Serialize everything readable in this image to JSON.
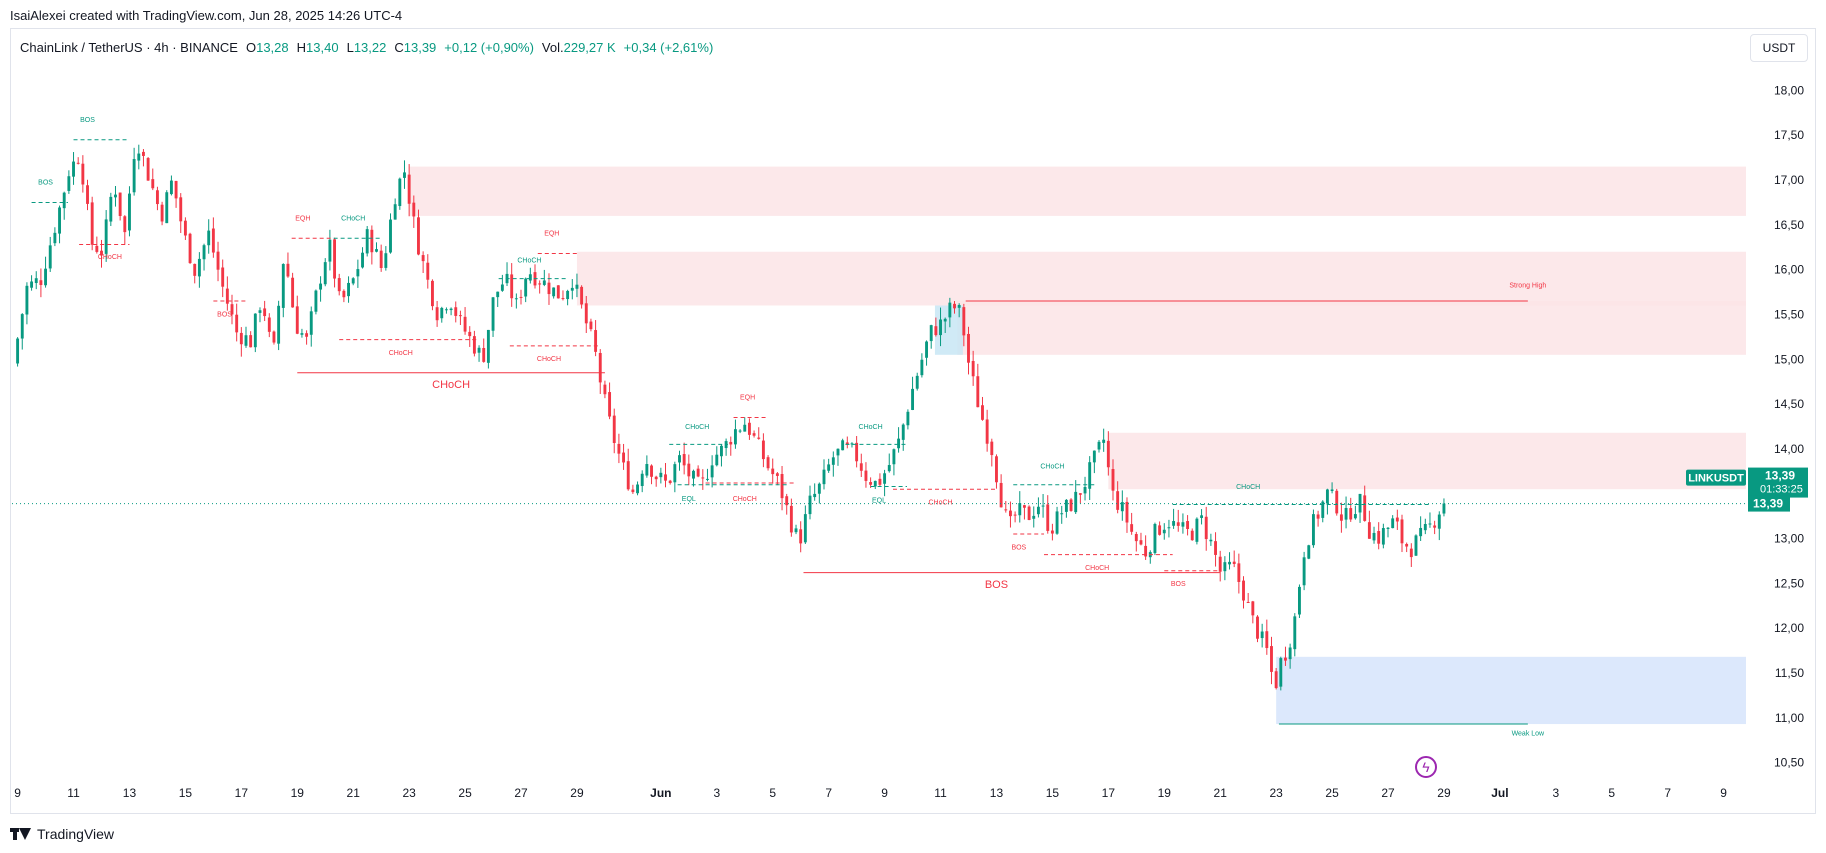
{
  "credit": "IsaiAlexei created with TradingView.com, Jun 28, 2025 14:26 UTC-4",
  "legend": {
    "symbol": "ChainLink / TetherUS · 4h · BINANCE",
    "open_label": "O",
    "open": "13,28",
    "high_label": "H",
    "high": "13,40",
    "low_label": "L",
    "low": "13,22",
    "close_label": "C",
    "close": "13,39",
    "change": "+0,12 (+0,90%)",
    "vol_label": "Vol.",
    "vol": "229,27 K",
    "vol_change": "+0,34 (+2,61%)"
  },
  "currency": "USDT",
  "footer": "TradingView",
  "flash_icon": "lightning-icon",
  "colors": {
    "up": "#089981",
    "down": "#f23645",
    "supply_zone": "#fce4e6",
    "demand_zone": "#d6e4fc",
    "ob_blue": "#c8e6f5"
  },
  "chart_data": {
    "type": "candlestick",
    "symbol": "LINKUSDT",
    "timeframe": "4h",
    "ylim": [
      10.25,
      18.25
    ],
    "y_ticks": [
      {
        "v": 18.0,
        "label": "18,00"
      },
      {
        "v": 17.5,
        "label": "17,50"
      },
      {
        "v": 17.0,
        "label": "17,00"
      },
      {
        "v": 16.5,
        "label": "16,50"
      },
      {
        "v": 16.0,
        "label": "16,00"
      },
      {
        "v": 15.5,
        "label": "15,50"
      },
      {
        "v": 15.0,
        "label": "15,00"
      },
      {
        "v": 14.5,
        "label": "14,50"
      },
      {
        "v": 14.0,
        "label": "14,00"
      },
      {
        "v": 13.0,
        "label": "13,00"
      },
      {
        "v": 12.5,
        "label": "12,50"
      },
      {
        "v": 12.0,
        "label": "12,00"
      },
      {
        "v": 11.5,
        "label": "11,50"
      },
      {
        "v": 11.0,
        "label": "11,00"
      },
      {
        "v": 10.5,
        "label": "10,50"
      }
    ],
    "x_ticks": [
      {
        "d": 0,
        "label": "9"
      },
      {
        "d": 2,
        "label": "11"
      },
      {
        "d": 4,
        "label": "13"
      },
      {
        "d": 6,
        "label": "15"
      },
      {
        "d": 8,
        "label": "17"
      },
      {
        "d": 10,
        "label": "19"
      },
      {
        "d": 12,
        "label": "21"
      },
      {
        "d": 14,
        "label": "23"
      },
      {
        "d": 16,
        "label": "25"
      },
      {
        "d": 18,
        "label": "27"
      },
      {
        "d": 20,
        "label": "29"
      },
      {
        "d": 23,
        "label": "Jun",
        "bold": true
      },
      {
        "d": 25,
        "label": "3"
      },
      {
        "d": 27,
        "label": "5"
      },
      {
        "d": 29,
        "label": "7"
      },
      {
        "d": 31,
        "label": "9"
      },
      {
        "d": 33,
        "label": "11"
      },
      {
        "d": 35,
        "label": "13"
      },
      {
        "d": 37,
        "label": "15"
      },
      {
        "d": 39,
        "label": "17"
      },
      {
        "d": 41,
        "label": "19"
      },
      {
        "d": 43,
        "label": "21"
      },
      {
        "d": 45,
        "label": "23"
      },
      {
        "d": 47,
        "label": "25"
      },
      {
        "d": 49,
        "label": "27"
      },
      {
        "d": 51,
        "label": "29"
      },
      {
        "d": 53,
        "label": "Jul",
        "bold": true
      },
      {
        "d": 55,
        "label": "3"
      },
      {
        "d": 57,
        "label": "5"
      },
      {
        "d": 59,
        "label": "7"
      },
      {
        "d": 61,
        "label": "9"
      }
    ],
    "x_range_days": [
      -0.2,
      61.8
    ],
    "waypoints": [
      [
        0.0,
        14.95
      ],
      [
        0.5,
        15.8
      ],
      [
        1.0,
        15.9
      ],
      [
        1.6,
        16.6
      ],
      [
        2.0,
        17.1
      ],
      [
        2.4,
        17.3
      ],
      [
        2.8,
        16.3
      ],
      [
        3.2,
        16.2
      ],
      [
        3.6,
        17.0
      ],
      [
        4.0,
        16.4
      ],
      [
        4.4,
        17.5
      ],
      [
        4.9,
        17.0
      ],
      [
        5.3,
        16.6
      ],
      [
        5.7,
        17.0
      ],
      [
        6.1,
        16.4
      ],
      [
        6.5,
        16.0
      ],
      [
        7.0,
        16.4
      ],
      [
        7.5,
        15.8
      ],
      [
        8.0,
        15.3
      ],
      [
        8.5,
        15.2
      ],
      [
        8.9,
        15.7
      ],
      [
        9.3,
        15.0
      ],
      [
        9.7,
        16.2
      ],
      [
        10.1,
        15.4
      ],
      [
        10.5,
        15.2
      ],
      [
        10.9,
        15.8
      ],
      [
        11.3,
        16.3
      ],
      [
        11.7,
        15.6
      ],
      [
        12.2,
        15.9
      ],
      [
        12.7,
        16.4
      ],
      [
        13.2,
        16.0
      ],
      [
        13.7,
        16.9
      ],
      [
        14.0,
        17.1
      ],
      [
        14.4,
        16.4
      ],
      [
        14.8,
        15.9
      ],
      [
        15.2,
        15.5
      ],
      [
        15.6,
        15.7
      ],
      [
        16.0,
        15.4
      ],
      [
        16.4,
        15.2
      ],
      [
        16.8,
        15.0
      ],
      [
        17.2,
        15.7
      ],
      [
        17.6,
        15.9
      ],
      [
        18.0,
        15.6
      ],
      [
        18.4,
        16.0
      ],
      [
        18.8,
        15.9
      ],
      [
        19.2,
        15.8
      ],
      [
        19.6,
        15.7
      ],
      [
        20.0,
        15.9
      ],
      [
        20.4,
        15.5
      ],
      [
        20.8,
        15.1
      ],
      [
        21.1,
        14.6
      ],
      [
        21.4,
        14.2
      ],
      [
        21.8,
        13.8
      ],
      [
        22.2,
        13.5
      ],
      [
        22.6,
        13.9
      ],
      [
        23.0,
        13.7
      ],
      [
        23.4,
        13.6
      ],
      [
        23.8,
        13.9
      ],
      [
        24.2,
        13.7
      ],
      [
        24.6,
        13.55
      ],
      [
        25.0,
        13.9
      ],
      [
        25.4,
        14.0
      ],
      [
        25.8,
        14.2
      ],
      [
        26.2,
        14.3
      ],
      [
        26.6,
        14.05
      ],
      [
        27.0,
        13.8
      ],
      [
        27.4,
        13.6
      ],
      [
        27.8,
        13.2
      ],
      [
        28.1,
        12.95
      ],
      [
        28.5,
        13.4
      ],
      [
        28.9,
        13.6
      ],
      [
        29.3,
        13.9
      ],
      [
        29.7,
        14.0
      ],
      [
        30.1,
        13.95
      ],
      [
        30.5,
        13.7
      ],
      [
        30.9,
        13.6
      ],
      [
        31.3,
        13.8
      ],
      [
        31.7,
        14.1
      ],
      [
        32.1,
        14.6
      ],
      [
        32.5,
        15.0
      ],
      [
        32.8,
        15.3
      ],
      [
        33.2,
        15.4
      ],
      [
        33.6,
        15.6
      ],
      [
        33.9,
        15.5
      ],
      [
        34.2,
        14.9
      ],
      [
        34.6,
        14.4
      ],
      [
        35.0,
        14.0
      ],
      [
        35.3,
        13.5
      ],
      [
        35.6,
        13.1
      ],
      [
        35.9,
        13.3
      ],
      [
        36.3,
        13.25
      ],
      [
        36.7,
        13.4
      ],
      [
        37.1,
        13.1
      ],
      [
        37.5,
        13.3
      ],
      [
        37.9,
        13.4
      ],
      [
        38.3,
        13.6
      ],
      [
        38.7,
        13.9
      ],
      [
        39.0,
        14.1
      ],
      [
        39.3,
        13.5
      ],
      [
        39.7,
        13.3
      ],
      [
        40.1,
        13.0
      ],
      [
        40.5,
        12.85
      ],
      [
        40.9,
        13.1
      ],
      [
        41.3,
        13.2
      ],
      [
        41.7,
        13.1
      ],
      [
        42.1,
        13.05
      ],
      [
        42.5,
        13.2
      ],
      [
        42.9,
        12.9
      ],
      [
        43.2,
        12.6
      ],
      [
        43.6,
        12.7
      ],
      [
        44.0,
        12.4
      ],
      [
        44.3,
        12.1
      ],
      [
        44.6,
        11.9
      ],
      [
        44.9,
        11.7
      ],
      [
        45.1,
        11.3
      ],
      [
        45.3,
        11.6
      ],
      [
        45.6,
        11.8
      ],
      [
        45.9,
        12.2
      ],
      [
        46.1,
        12.8
      ],
      [
        46.4,
        13.1
      ],
      [
        46.7,
        13.3
      ],
      [
        47.0,
        13.5
      ],
      [
        47.3,
        13.4
      ],
      [
        47.6,
        13.2
      ],
      [
        47.9,
        13.35
      ],
      [
        48.2,
        13.4
      ],
      [
        48.5,
        13.1
      ],
      [
        48.8,
        13.0
      ],
      [
        49.1,
        13.1
      ],
      [
        49.4,
        13.2
      ],
      [
        49.7,
        12.95
      ],
      [
        50.0,
        12.9
      ],
      [
        50.3,
        13.0
      ],
      [
        50.6,
        13.1
      ],
      [
        50.9,
        13.25
      ],
      [
        51.1,
        13.39
      ]
    ],
    "current_price": 13.39,
    "price_label": "LINKUSDT",
    "price_tag": "13,39",
    "countdown": "01:33:25",
    "price_tag2": "13,39",
    "zones": [
      {
        "x1": 14.0,
        "x2": 61.8,
        "y1": 17.15,
        "y2": 16.6,
        "type": "supply"
      },
      {
        "x1": 20.0,
        "x2": 61.8,
        "y1": 16.2,
        "y2": 15.6,
        "type": "supply"
      },
      {
        "x1": 33.6,
        "x2": 61.8,
        "y1": 15.65,
        "y2": 15.05,
        "type": "supply"
      },
      {
        "x1": 39.0,
        "x2": 61.8,
        "y1": 14.18,
        "y2": 13.55,
        "type": "supply"
      },
      {
        "x1": 32.8,
        "x2": 33.8,
        "y1": 15.6,
        "y2": 15.05,
        "type": "ob_blue"
      },
      {
        "x1": 45.0,
        "x2": 61.8,
        "y1": 11.68,
        "y2": 10.93,
        "type": "demand"
      }
    ],
    "structure_lines": [
      {
        "x1": 10.0,
        "x2": 21.0,
        "y": 14.85,
        "color": "down",
        "dash": false,
        "label": "CHoCH",
        "lx": 15.5,
        "ly": 14.68,
        "size": 11
      },
      {
        "x1": 28.1,
        "x2": 43.0,
        "y": 12.62,
        "color": "down",
        "dash": false,
        "label": "BOS",
        "lx": 35.0,
        "ly": 12.45,
        "size": 11
      },
      {
        "x1": 33.9,
        "x2": 54.0,
        "y": 15.65,
        "color": "down",
        "dash": false,
        "label": "Strong High",
        "lx": 54.0,
        "ly": 15.8,
        "size": 7
      },
      {
        "x1": 45.1,
        "x2": 54.0,
        "y": 10.93,
        "color": "up",
        "dash": false,
        "label": "Weak Low",
        "lx": 54.0,
        "ly": 10.8,
        "size": 7
      },
      {
        "x1": 0.5,
        "x2": 1.8,
        "y": 16.75,
        "color": "up",
        "dash": true,
        "label": "BOS",
        "lx": 1.0,
        "ly": 16.95,
        "size": 7
      },
      {
        "x1": 2.0,
        "x2": 4.0,
        "y": 17.45,
        "color": "up",
        "dash": true,
        "label": "BOS",
        "lx": 2.5,
        "ly": 17.65,
        "size": 7
      },
      {
        "x1": 2.2,
        "x2": 4.0,
        "y": 16.28,
        "color": "down",
        "dash": true,
        "label": "CHoCH",
        "lx": 3.3,
        "ly": 16.12,
        "size": 7
      },
      {
        "x1": 7.0,
        "x2": 8.2,
        "y": 15.65,
        "color": "down",
        "dash": true,
        "label": "BOS",
        "lx": 7.4,
        "ly": 15.48,
        "size": 7
      },
      {
        "x1": 9.8,
        "x2": 11.3,
        "y": 16.35,
        "color": "down",
        "dash": true,
        "label": "EQH",
        "lx": 10.2,
        "ly": 16.55,
        "size": 7
      },
      {
        "x1": 11.3,
        "x2": 13.0,
        "y": 16.35,
        "color": "up",
        "dash": true,
        "label": "CHoCH",
        "lx": 12.0,
        "ly": 16.55,
        "size": 7
      },
      {
        "x1": 11.5,
        "x2": 16.5,
        "y": 15.22,
        "color": "down",
        "dash": true,
        "label": "CHoCH",
        "lx": 13.7,
        "ly": 15.05,
        "size": 7
      },
      {
        "x1": 17.2,
        "x2": 19.6,
        "y": 15.9,
        "color": "up",
        "dash": true,
        "label": "CHoCH",
        "lx": 18.3,
        "ly": 16.08,
        "size": 7
      },
      {
        "x1": 17.6,
        "x2": 20.8,
        "y": 15.15,
        "color": "down",
        "dash": true,
        "label": "CHoCH",
        "lx": 19.0,
        "ly": 14.98,
        "size": 7
      },
      {
        "x1": 18.6,
        "x2": 20.0,
        "y": 16.18,
        "color": "down",
        "dash": true,
        "label": "EQH",
        "lx": 19.1,
        "ly": 16.38,
        "size": 7
      },
      {
        "x1": 23.3,
        "x2": 25.4,
        "y": 14.05,
        "color": "up",
        "dash": true,
        "label": "CHoCH",
        "lx": 24.3,
        "ly": 14.22,
        "size": 7
      },
      {
        "x1": 23.6,
        "x2": 27.5,
        "y": 13.6,
        "color": "up",
        "dash": true,
        "label": "EQL",
        "lx": 24.0,
        "ly": 13.42,
        "size": 7
      },
      {
        "x1": 24.6,
        "x2": 27.8,
        "y": 13.62,
        "color": "down",
        "dash": true,
        "label": "CHoCH",
        "lx": 26.0,
        "ly": 13.42,
        "size": 7
      },
      {
        "x1": 25.6,
        "x2": 26.8,
        "y": 14.35,
        "color": "down",
        "dash": true,
        "label": "EQH",
        "lx": 26.1,
        "ly": 14.55,
        "size": 7
      },
      {
        "x1": 29.6,
        "x2": 31.8,
        "y": 14.05,
        "color": "up",
        "dash": true,
        "label": "CHoCH",
        "lx": 30.5,
        "ly": 14.22,
        "size": 7
      },
      {
        "x1": 30.5,
        "x2": 31.8,
        "y": 13.58,
        "color": "up",
        "dash": true,
        "label": "EQL",
        "lx": 30.8,
        "ly": 13.4,
        "size": 7
      },
      {
        "x1": 31.3,
        "x2": 35.0,
        "y": 13.55,
        "color": "down",
        "dash": true,
        "label": "CHoCH",
        "lx": 33.0,
        "ly": 13.38,
        "size": 7
      },
      {
        "x1": 35.6,
        "x2": 38.5,
        "y": 13.6,
        "color": "up",
        "dash": true,
        "label": "CHoCH",
        "lx": 37.0,
        "ly": 13.78,
        "size": 7
      },
      {
        "x1": 35.6,
        "x2": 36.7,
        "y": 13.05,
        "color": "down",
        "dash": true,
        "label": "BOS",
        "lx": 35.8,
        "ly": 12.88,
        "size": 7
      },
      {
        "x1": 36.7,
        "x2": 41.3,
        "y": 12.82,
        "color": "down",
        "dash": true,
        "label": "CHoCH",
        "lx": 38.6,
        "ly": 12.65,
        "size": 7
      },
      {
        "x1": 41.0,
        "x2": 43.0,
        "y": 12.64,
        "color": "down",
        "dash": true,
        "label": "BOS",
        "lx": 41.5,
        "ly": 12.47,
        "size": 7
      },
      {
        "x1": 41.3,
        "x2": 50.5,
        "y": 13.38,
        "color": "up",
        "dash": true,
        "label": "CHoCH",
        "lx": 44.0,
        "ly": 13.55,
        "size": 7
      }
    ]
  }
}
